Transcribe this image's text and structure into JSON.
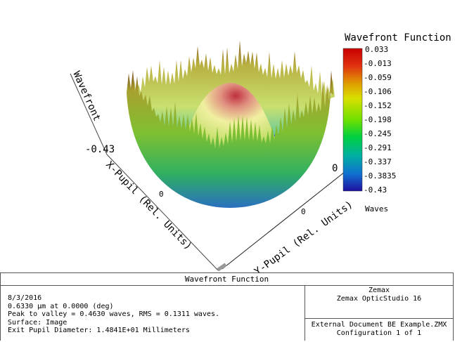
{
  "chart_data": {
    "type": "surface",
    "title": "Wavefront Function",
    "axes": {
      "z_label": "Wavefront",
      "z_tick": "-0.43",
      "x_label": "X-Pupil (Rel. Units)",
      "x_tick": "0",
      "y_label": "Y-Pupil (Rel. Units)",
      "y_tick": "0",
      "y_tick_2": "0"
    },
    "colorbar": {
      "title": "Wavefront Function",
      "ticks": [
        "0.033",
        "-0.013",
        "-0.059",
        "-0.106",
        "-0.152",
        "-0.198",
        "-0.245",
        "-0.291",
        "-0.337",
        "-0.3835",
        "-0.43"
      ],
      "unit": "Waves",
      "range": [
        -0.43,
        0.033
      ],
      "colormap": [
        "#c80000",
        "#e06000",
        "#e0c000",
        "#c8e000",
        "#60e000",
        "#00d040",
        "#00b0a0",
        "#1060d0",
        "#2020b0"
      ]
    }
  },
  "footer": {
    "title": "Wavefront Function",
    "info_lines": [
      "8/3/2016",
      "0.6330 µm at 0.0000 (deg)",
      "Peak to valley = 0.4630 waves, RMS = 0.1311 waves.",
      "Surface: Image",
      "Exit Pupil Diameter: 1.4841E+01 Millimeters"
    ],
    "company": "Zemax",
    "product": "Zemax OpticStudio 16",
    "file": "External Document BE Example.ZMX",
    "configuration": "Configuration 1 of 1"
  }
}
